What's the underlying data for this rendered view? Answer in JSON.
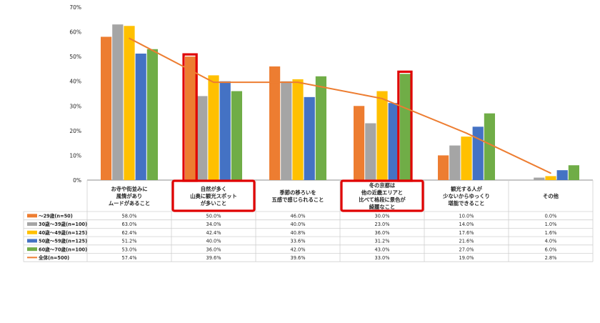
{
  "chart_data": {
    "type": "bar",
    "title": "",
    "xlabel": "",
    "ylabel": "",
    "ylim": [
      0,
      70
    ],
    "ytick_labels": [
      "0%",
      "10%",
      "20%",
      "30%",
      "40%",
      "50%",
      "60%",
      "70%"
    ],
    "grid": false,
    "legend_position": "left-table",
    "categories": [
      [
        "お寺や街並みに",
        "風情があり",
        "ムードがあること"
      ],
      [
        "自然が多く",
        "山奥に観光スポット",
        "が多いこと"
      ],
      [
        "季節の移ろいを",
        "五感で感じられること"
      ],
      [
        "冬の京都は",
        "他の近畿エリアと",
        "比べて格段に景色が",
        "綺麗なこと"
      ],
      [
        "観光する人が",
        "少ないからゆっくり",
        "堪能できること"
      ],
      [
        "その他"
      ]
    ],
    "series": [
      {
        "name": "〜29歳(n=50)",
        "color": "#ED7D31",
        "values": [
          58.0,
          50.0,
          46.0,
          30.0,
          10.0,
          0.0
        ],
        "labels": [
          "58.0%",
          "50.0%",
          "46.0%",
          "30.0%",
          "10.0%",
          "0.0%"
        ]
      },
      {
        "name": "30歳〜39歳(n=100)",
        "color": "#A5A5A5",
        "values": [
          63.0,
          34.0,
          40.0,
          23.0,
          14.0,
          1.0
        ],
        "labels": [
          "63.0%",
          "34.0%",
          "40.0%",
          "23.0%",
          "14.0%",
          "1.0%"
        ]
      },
      {
        "name": "40歳〜49歳(n=125)",
        "color": "#FFC000",
        "values": [
          62.4,
          42.4,
          40.8,
          36.0,
          17.6,
          1.6
        ],
        "labels": [
          "62.4%",
          "42.4%",
          "40.8%",
          "36.0%",
          "17.6%",
          "1.6%"
        ]
      },
      {
        "name": "50歳〜59歳(n=125)",
        "color": "#4472C4",
        "values": [
          51.2,
          40.0,
          33.6,
          31.2,
          21.6,
          4.0
        ],
        "labels": [
          "51.2%",
          "40.0%",
          "33.6%",
          "31.2%",
          "21.6%",
          "4.0%"
        ]
      },
      {
        "name": "60歳〜70歳(n=100)",
        "color": "#70AD47",
        "values": [
          53.0,
          36.0,
          42.0,
          43.0,
          27.0,
          6.0
        ],
        "labels": [
          "53.0%",
          "36.0%",
          "42.0%",
          "43.0%",
          "27.0%",
          "6.0%"
        ]
      }
    ],
    "line_series": {
      "name": "全体(n=500)",
      "color": "#ED7D31",
      "values": [
        57.4,
        39.6,
        39.6,
        33.0,
        19.0,
        2.8
      ],
      "labels": [
        "57.4%",
        "39.6%",
        "39.6%",
        "33.0%",
        "19.0%",
        "2.8%"
      ]
    },
    "highlights": [
      {
        "category_index": 1,
        "series_index": 0,
        "color": "#E00000"
      },
      {
        "category_index": 3,
        "series_index": 4,
        "color": "#E00000"
      }
    ],
    "highlighted_categories": [
      1,
      3
    ]
  }
}
